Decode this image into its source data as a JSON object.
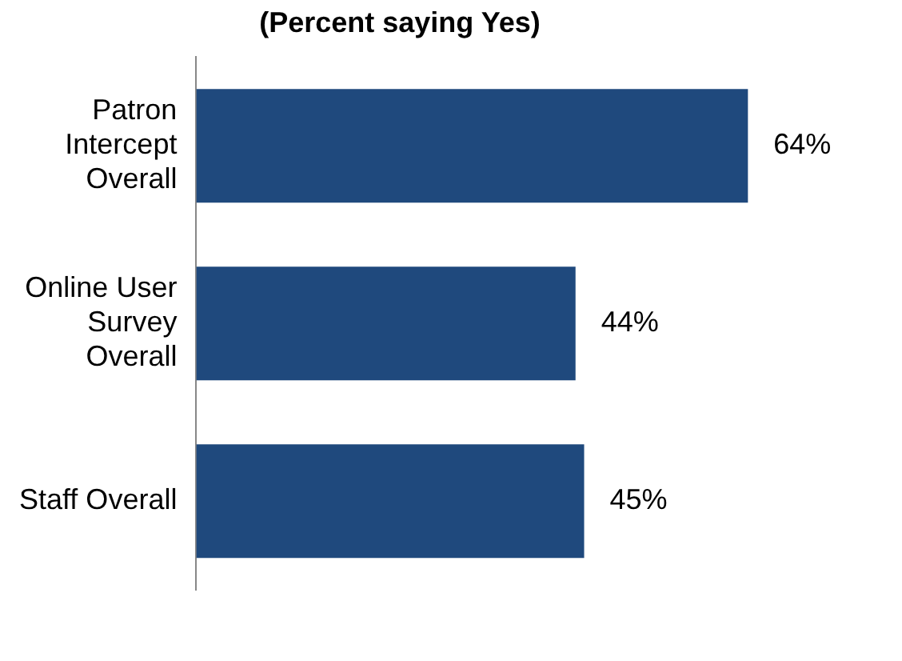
{
  "chart_data": {
    "type": "bar",
    "orientation": "horizontal",
    "title": "(Percent saying Yes)",
    "categories": [
      "Patron Intercept Overall",
      "Online User Survey Overall",
      "Staff Overall"
    ],
    "values": [
      64,
      44,
      45
    ],
    "color": "#1f497d",
    "value_labels": [
      "64%",
      "44%",
      "45%"
    ],
    "legend": false
  }
}
